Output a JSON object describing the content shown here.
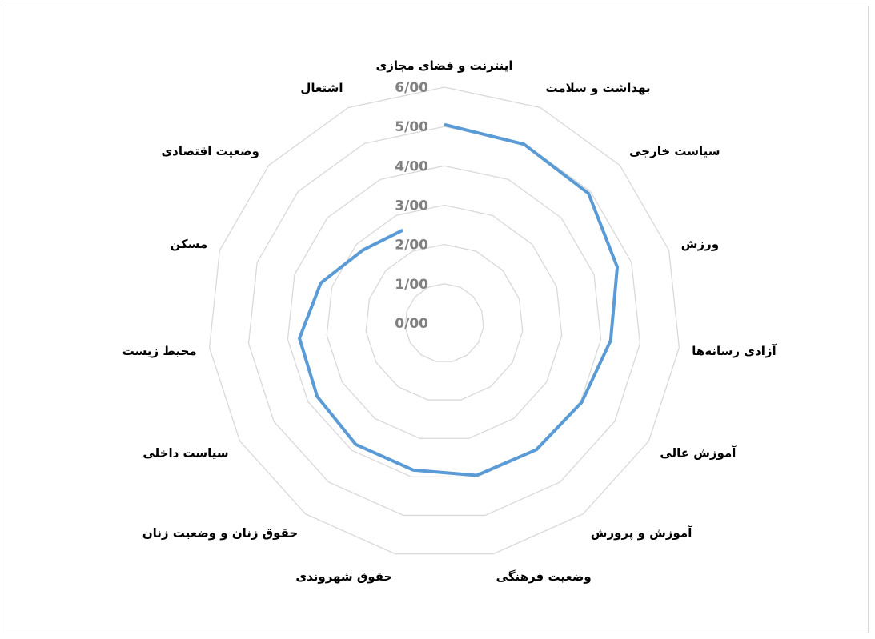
{
  "chart_data": {
    "type": "radar",
    "categories": [
      "اینترنت و فضای مجازی",
      "بهداشت و سلامت",
      "سیاست خارجی",
      "ورزش",
      "آزادی رسانه‌ها",
      "آموزش عالی",
      "آموزش و پرورش",
      "وضعیت فرهنگی",
      "حقوق شهروندی",
      "حقوق زنان و وضعیت زنان",
      "سیاست داخلی",
      "محیط زیست",
      "مسکن",
      "وضعیت اقتصادی",
      "اشتغال"
    ],
    "series": [
      {
        "name": "",
        "color": "#5b9bd5",
        "values": [
          5.05,
          4.98,
          4.93,
          4.62,
          4.25,
          4.03,
          3.98,
          3.96,
          3.82,
          3.82,
          3.73,
          3.7,
          3.3,
          2.78,
          2.59
        ]
      }
    ],
    "ylim": [
      0,
      6
    ],
    "yticks": [
      {
        "value": 0,
        "label": "0/00"
      },
      {
        "value": 1,
        "label": "1/00"
      },
      {
        "value": 2,
        "label": "2/00"
      },
      {
        "value": 3,
        "label": "3/00"
      },
      {
        "value": 4,
        "label": "4/00"
      },
      {
        "value": 5,
        "label": "5/00"
      },
      {
        "value": 6,
        "label": "6/00"
      }
    ],
    "grid": true,
    "grid_color": "#d9d9d9"
  }
}
